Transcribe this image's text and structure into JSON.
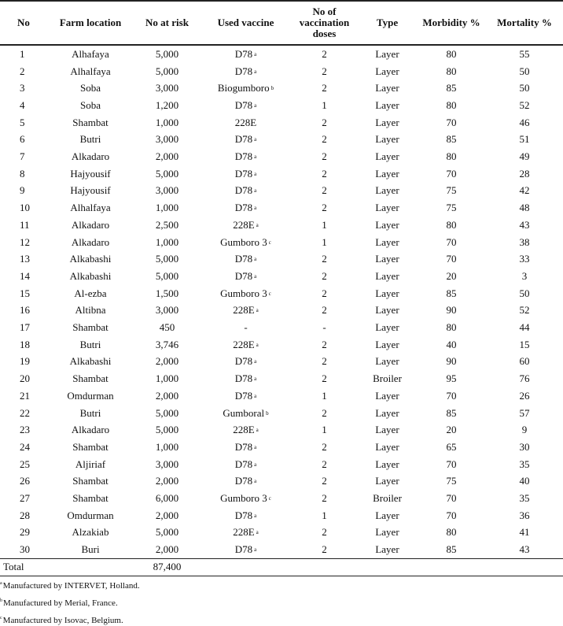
{
  "table": {
    "header": [
      "No",
      "Farm location",
      "No at risk",
      "Used vaccine",
      "No of vaccination doses",
      "Type",
      "Morbidity %",
      "Mortality %"
    ],
    "rows": [
      [
        "1",
        "Alhafaya",
        "5,000",
        {
          "text": "D78",
          "sup": "a"
        },
        "2",
        "Layer",
        "80",
        "55"
      ],
      [
        "2",
        "Alhalfaya",
        "5,000",
        {
          "text": "D78",
          "sup": "a"
        },
        "2",
        "Layer",
        "80",
        "50"
      ],
      [
        "3",
        "Soba",
        "3,000",
        {
          "text": "Biogumboro",
          "sup": "b"
        },
        "2",
        "Layer",
        "85",
        "50"
      ],
      [
        "4",
        "Soba",
        "1,200",
        {
          "text": "D78",
          "sup": "a"
        },
        "1",
        "Layer",
        "80",
        "52"
      ],
      [
        "5",
        "Shambat",
        "1,000",
        "228E",
        "2",
        "Layer",
        "70",
        "46"
      ],
      [
        "6",
        "Butri",
        "3,000",
        {
          "text": "D78",
          "sup": "a"
        },
        "2",
        "Layer",
        "85",
        "51"
      ],
      [
        "7",
        "Alkadaro",
        "2,000",
        {
          "text": "D78",
          "sup": "a"
        },
        "2",
        "Layer",
        "80",
        "49"
      ],
      [
        "8",
        "Hajyousif",
        "5,000",
        {
          "text": "D78",
          "sup": "a"
        },
        "2",
        "Layer",
        "70",
        "28"
      ],
      [
        "9",
        "Hajyousif",
        "3,000",
        {
          "text": "D78",
          "sup": "a"
        },
        "2",
        "Layer",
        "75",
        "42"
      ],
      [
        "10",
        "Alhalfaya",
        "1,000",
        {
          "text": "D78",
          "sup": "a"
        },
        "2",
        "Layer",
        "75",
        "48"
      ],
      [
        "11",
        "Alkadaro",
        "2,500",
        {
          "text": "228E",
          "sup": "a"
        },
        "1",
        "Layer",
        "80",
        "43"
      ],
      [
        "12",
        "Alkadaro",
        "1,000",
        {
          "text": "Gumboro 3",
          "sup": "c"
        },
        "1",
        "Layer",
        "70",
        "38"
      ],
      [
        "13",
        "Alkabashi",
        "5,000",
        {
          "text": "D78",
          "sup": "a"
        },
        "2",
        "Layer",
        "70",
        "33"
      ],
      [
        "14",
        "Alkabashi",
        "5,000",
        {
          "text": "D78",
          "sup": "a"
        },
        "2",
        "Layer",
        "20",
        "3"
      ],
      [
        "15",
        "Al-ezba",
        "1,500",
        {
          "text": "Gumboro 3",
          "sup": "c"
        },
        "2",
        "Layer",
        "85",
        "50"
      ],
      [
        "16",
        "Altibna",
        "3,000",
        {
          "text": "228E",
          "sup": "a"
        },
        "2",
        "Layer",
        "90",
        "52"
      ],
      [
        "17",
        "Shambat",
        "450",
        "-",
        "-",
        "Layer",
        "80",
        "44"
      ],
      [
        "18",
        "Butri",
        "3,746",
        {
          "text": "228E",
          "sup": "a"
        },
        "2",
        "Layer",
        "40",
        "15"
      ],
      [
        "19",
        "Alkabashi",
        "2,000",
        {
          "text": "D78",
          "sup": "a"
        },
        "2",
        "Layer",
        "90",
        "60"
      ],
      [
        "20",
        "Shambat",
        "1,000",
        {
          "text": "D78",
          "sup": "a"
        },
        "2",
        "Broiler",
        "95",
        "76"
      ],
      [
        "21",
        "Omdurman",
        "2,000",
        {
          "text": "D78",
          "sup": "a"
        },
        "1",
        "Layer",
        "70",
        "26"
      ],
      [
        "22",
        "Butri",
        "5,000",
        {
          "text": "Gumboral",
          "sup": "b"
        },
        "2",
        "Layer",
        "85",
        "57"
      ],
      [
        "23",
        "Alkadaro",
        "5,000",
        {
          "text": "228E",
          "sup": "a"
        },
        "1",
        "Layer",
        "20",
        "9"
      ],
      [
        "24",
        "Shambat",
        "1,000",
        {
          "text": "D78",
          "sup": "a"
        },
        "2",
        "Layer",
        "65",
        "30"
      ],
      [
        "25",
        "Aljiriaf",
        "3,000",
        {
          "text": "D78",
          "sup": "a"
        },
        "2",
        "Layer",
        "70",
        "35"
      ],
      [
        "26",
        "Shambat",
        "2,000",
        {
          "text": "D78",
          "sup": "a"
        },
        "2",
        "Layer",
        "75",
        "40"
      ],
      [
        "27",
        "Shambat",
        "6,000",
        {
          "text": "Gumboro 3",
          "sup": "c"
        },
        "2",
        "Broiler",
        "70",
        "35"
      ],
      [
        "28",
        "Omdurman",
        "2,000",
        {
          "text": "D78",
          "sup": "a"
        },
        "1",
        "Layer",
        "70",
        "36"
      ],
      [
        "29",
        "Alzakiab",
        "5,000",
        {
          "text": "228E",
          "sup": "a"
        },
        "2",
        "Layer",
        "80",
        "41"
      ],
      [
        "30",
        "Buri",
        "2,000",
        {
          "text": "D78",
          "sup": "a"
        },
        "2",
        "Layer",
        "85",
        "43"
      ]
    ],
    "total": {
      "label": "Total",
      "at_risk": "87,400"
    },
    "footnotes": [
      {
        "mark": "a",
        "text": "Manufactured by INTERVET, Holland."
      },
      {
        "mark": "b",
        "text": "Manufactured by Merial, France."
      },
      {
        "mark": "c",
        "text": "Manufactured by Isovac, Belgium."
      }
    ]
  }
}
